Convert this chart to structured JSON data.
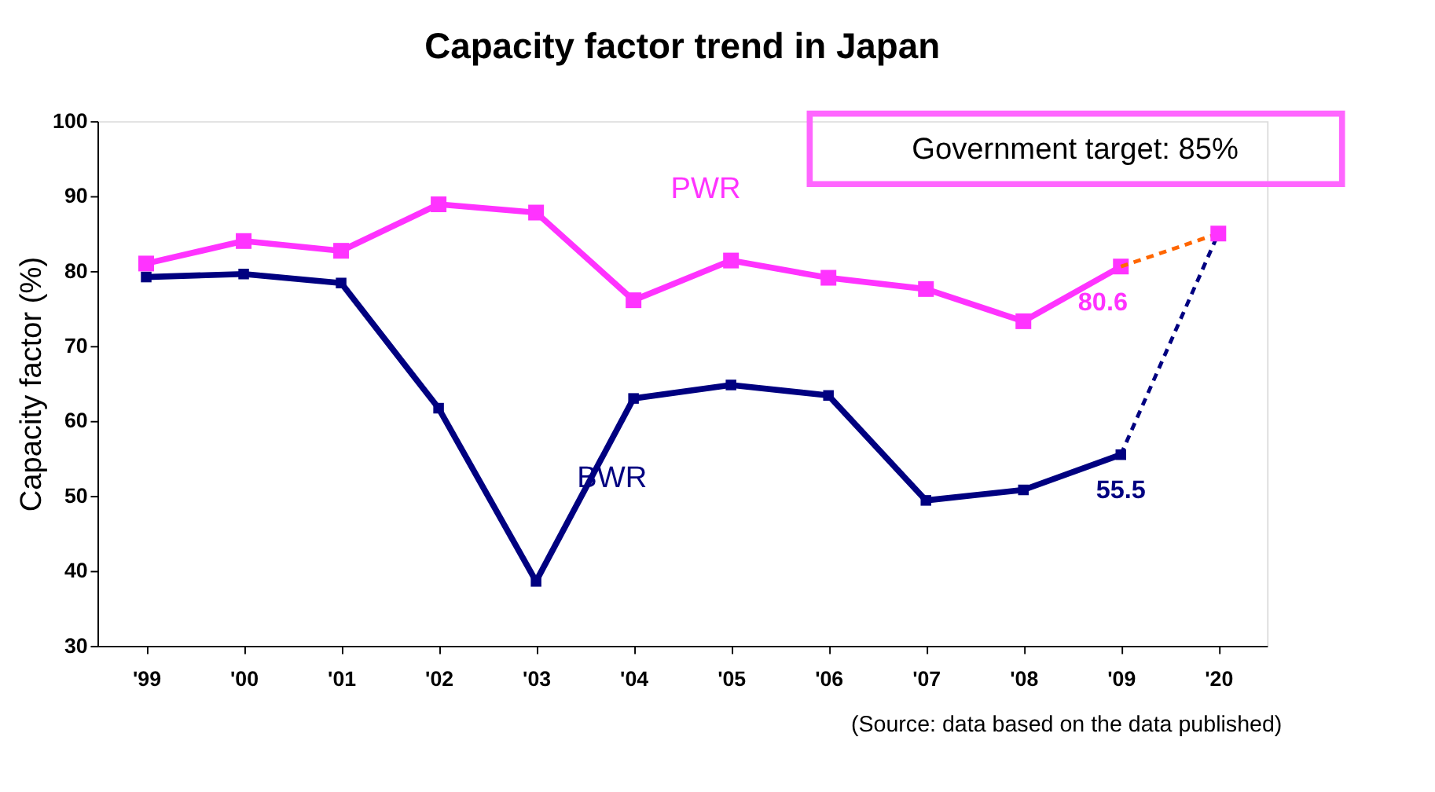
{
  "chart_data": {
    "type": "line",
    "title": "Capacity factor trend in Japan",
    "ylabel": "Capacity factor (%)",
    "categories": [
      "'99",
      "'00",
      "'01",
      "'02",
      "'03",
      "'04",
      "'05",
      "'06",
      "'07",
      "'08",
      "'09",
      "'20"
    ],
    "series": [
      {
        "name": "PWR",
        "color": "#ff33ff",
        "marker": "square",
        "line_style": "solid",
        "values": [
          81,
          84,
          82.7,
          88.9,
          87.8,
          76.1,
          81.4,
          79.1,
          77.6,
          73.3,
          80.6,
          null
        ],
        "value_labels": [
          null,
          null,
          null,
          null,
          null,
          null,
          null,
          null,
          null,
          null,
          "80.6",
          null
        ]
      },
      {
        "name": "BWR",
        "color": "#000080",
        "marker": "square",
        "line_style": "solid",
        "values": [
          79.2,
          79.6,
          78.4,
          61.7,
          38.6,
          63.0,
          64.8,
          63.4,
          49.4,
          50.8,
          55.5,
          null
        ],
        "value_labels": [
          null,
          null,
          null,
          null,
          null,
          null,
          null,
          null,
          null,
          null,
          "55.5",
          null
        ]
      },
      {
        "color": "#ff6600",
        "marker": "none",
        "line_style": "dashed",
        "values": [
          null,
          null,
          null,
          null,
          null,
          null,
          null,
          null,
          null,
          null,
          80.6,
          85
        ]
      },
      {
        "color": "#000080",
        "marker": "none",
        "line_style": "dashed",
        "values": [
          null,
          null,
          null,
          null,
          null,
          null,
          null,
          null,
          null,
          null,
          55.5,
          85
        ]
      },
      {
        "type": "scatter",
        "color": "#ff33ff",
        "marker": "square",
        "values": [
          null,
          null,
          null,
          null,
          null,
          null,
          null,
          null,
          null,
          null,
          null,
          85
        ]
      }
    ],
    "annotations": [
      "Government target: 85%",
      "(Source: data based on the data published)"
    ],
    "ylim": [
      30,
      100
    ],
    "yticks": [
      30,
      40,
      50,
      60,
      70,
      80,
      90,
      100
    ],
    "grid": false
  }
}
